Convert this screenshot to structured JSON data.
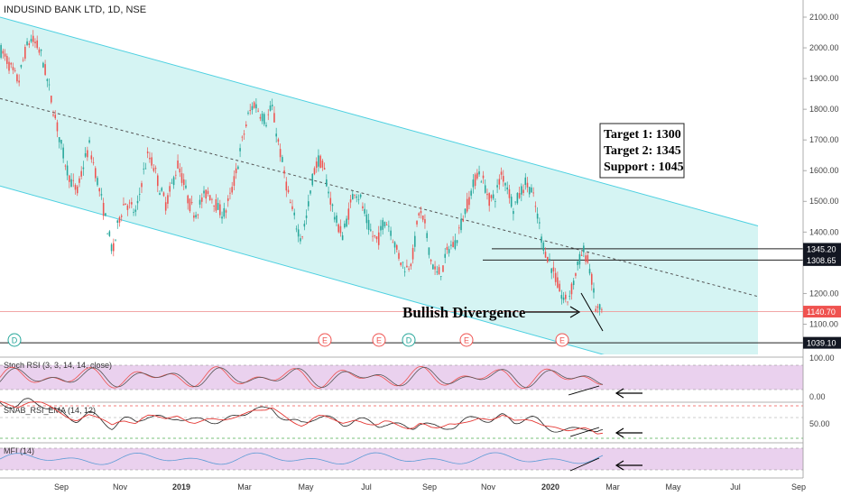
{
  "chart_data": {
    "type": "candlestick",
    "title": "INDUSIND BANK LTD, 1D, NSE",
    "price_axis": {
      "ticks": [
        "2100.00",
        "2000.00",
        "1900.00",
        "1800.00",
        "1700.00",
        "1600.00",
        "1500.00",
        "1400.00",
        "1300.00",
        "1200.00",
        "1100.00"
      ],
      "ylim": [
        1035,
        2150
      ]
    },
    "price_levels": [
      {
        "label": "1345.20",
        "value": 1345.2,
        "style": "black-box"
      },
      {
        "label": "1308.65",
        "value": 1308.65,
        "style": "black-box"
      },
      {
        "label": "1140.70",
        "value": 1140.7,
        "style": "red-box"
      },
      {
        "label": "1039.10",
        "value": 1039.1,
        "style": "black-box"
      }
    ],
    "time_axis": [
      "Sep",
      "Nov",
      "2019",
      "Mar",
      "May",
      "Jul",
      "Sep",
      "Nov",
      "2020",
      "Mar",
      "May",
      "Jul",
      "Sep"
    ],
    "channel": {
      "upper": [
        2100,
        1420
      ],
      "lower": [
        1550,
        860
      ],
      "mid": [
        1835,
        1190
      ],
      "color": "#4dd0e1"
    },
    "events": [
      "D",
      "E",
      "E",
      "D",
      "E",
      "E"
    ],
    "price_path": [
      1990,
      1960,
      1920,
      1890,
      1980,
      2030,
      2010,
      1970,
      1880,
      1790,
      1700,
      1620,
      1560,
      1530,
      1620,
      1680,
      1600,
      1510,
      1420,
      1330,
      1440,
      1500,
      1480,
      1460,
      1580,
      1650,
      1610,
      1540,
      1490,
      1550,
      1620,
      1560,
      1490,
      1460,
      1500,
      1530,
      1510,
      1470,
      1460,
      1520,
      1600,
      1700,
      1780,
      1820,
      1790,
      1760,
      1810,
      1700,
      1600,
      1500,
      1430,
      1380,
      1460,
      1590,
      1640,
      1590,
      1500,
      1430,
      1390,
      1460,
      1540,
      1510,
      1440,
      1390,
      1370,
      1440,
      1420,
      1350,
      1300,
      1280,
      1330,
      1470,
      1420,
      1310,
      1260,
      1280,
      1350,
      1360,
      1420,
      1480,
      1540,
      1600,
      1560,
      1500,
      1520,
      1590,
      1550,
      1480,
      1520,
      1560,
      1540,
      1460,
      1360,
      1310,
      1260,
      1200,
      1170,
      1220,
      1300,
      1340,
      1280,
      1150,
      1140
    ],
    "annotations": {
      "target_box": [
        "Target 1: 1300",
        "Target 2: 1345",
        "Support : 1045"
      ],
      "divergence_label": "Bullish Divergence"
    },
    "indicators": [
      {
        "name": "Stoch RSI (3, 3, 14, 14, close)",
        "ticks": [
          "100.00",
          "0.00"
        ]
      },
      {
        "name": "SNAB_RSI_EMA (14, 12)",
        "ticks": [
          "50.00"
        ]
      },
      {
        "name": "MFI (14)",
        "ticks": []
      }
    ],
    "colors": {
      "up": "#26a69a",
      "down": "#ef5350",
      "channel_fill": "#b2ebe9",
      "indicator_fill": "#e1bee7",
      "mfi_line": "#5b9bd5"
    }
  }
}
